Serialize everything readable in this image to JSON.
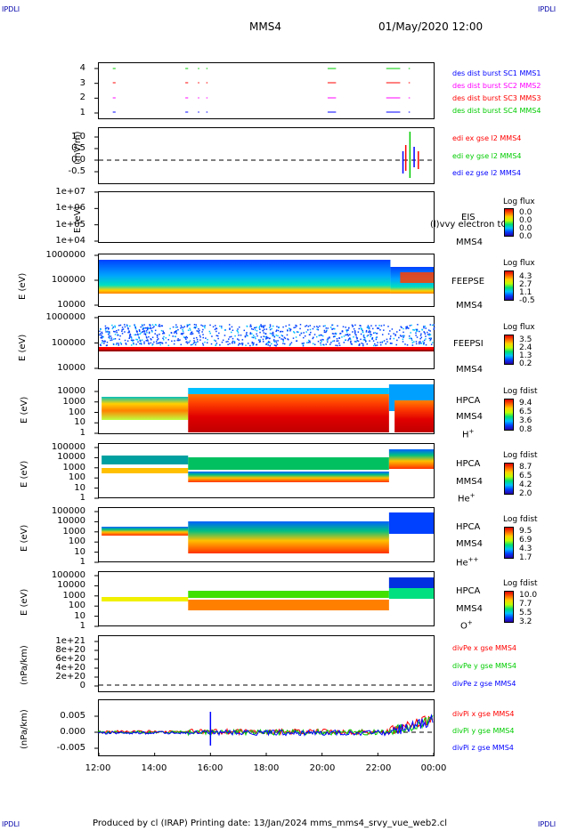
{
  "header": {
    "corner_tl": "IPDLI",
    "corner_tr": "IPDLI",
    "corner_bl": "IPDLI",
    "corner_br": "IPDLI",
    "spacecraft": "MMS4",
    "datetime": "01/May/2020 12:00"
  },
  "footer": {
    "text": "Produced by cl (IRAP)   Printing date: 13/Jan/2024   mms_mms4_srvy_vue_web2.cl"
  },
  "colors": {
    "blue": "#0000ff",
    "magenta": "#ff00ff",
    "red": "#ff0000",
    "green": "#00cc00"
  },
  "chart_data": [
    {
      "type": "scatter",
      "name": "burst availability",
      "yticks": [
        "4",
        "3",
        "2",
        "1"
      ],
      "legend": [
        "des dist burst SC1 MMS1",
        "des dist burst SC2 MMS2",
        "des dist burst SC3 MMS3",
        "des dist burst SC4 MMS4"
      ],
      "xlim": [
        "12:00",
        "00:00"
      ]
    },
    {
      "type": "line",
      "ylabel": "(mV/m)",
      "yticks": [
        "1.0",
        "0.5",
        "0.0",
        "-0.5"
      ],
      "ylim": [
        -0.75,
        1.25
      ],
      "legend": [
        "edi ex gse l2 MMS4",
        "edi ey gse l2 MMS4",
        "edi ez gse l2 MMS4"
      ]
    },
    {
      "type": "heatmap",
      "ylabel": "E (eV)",
      "yticks": [
        "1e+07",
        "1e+06",
        "1e+05",
        "1e+04"
      ],
      "instrument": "EIS",
      "instrument2": "MMS4",
      "overlay": "(l)vvy electron tO",
      "cbar_title": "Log flux",
      "cbar_values": [
        "0.0",
        "0.0",
        "0.0",
        "0.0"
      ]
    },
    {
      "type": "heatmap",
      "ylabel": "E (eV)",
      "yticks": [
        "1000000",
        "100000",
        "10000"
      ],
      "instrument": "FEEPSE",
      "instrument2": "MMS4",
      "cbar_title": "Log flux",
      "cbar_values": [
        "4.3",
        "2.7",
        "1.1",
        "-0.5"
      ]
    },
    {
      "type": "heatmap",
      "ylabel": "E (eV)",
      "yticks": [
        "1000000",
        "100000",
        "10000"
      ],
      "instrument": "FEEPSI",
      "instrument2": "MMS4",
      "cbar_title": "Log flux",
      "cbar_values": [
        "3.5",
        "2.4",
        "1.3",
        "0.2"
      ]
    },
    {
      "type": "heatmap",
      "ylabel": "E (eV)",
      "yticks": [
        "10000",
        "1000",
        "100",
        "10",
        "1"
      ],
      "instrument": "HPCA",
      "instrument2": "MMS4",
      "species": "H",
      "species_sup": "+",
      "cbar_title": "Log fdist",
      "cbar_values": [
        "9.4",
        "6.5",
        "3.6",
        "0.8"
      ]
    },
    {
      "type": "heatmap",
      "ylabel": "E (eV)",
      "yticks": [
        "100000",
        "10000",
        "1000",
        "100",
        "10",
        "1"
      ],
      "instrument": "HPCA",
      "instrument2": "MMS4",
      "species": "He",
      "species_sup": "+",
      "cbar_title": "Log fdist",
      "cbar_values": [
        "8.7",
        "6.5",
        "4.2",
        "2.0"
      ]
    },
    {
      "type": "heatmap",
      "ylabel": "E (eV)",
      "yticks": [
        "100000",
        "10000",
        "1000",
        "100",
        "10",
        "1"
      ],
      "instrument": "HPCA",
      "instrument2": "MMS4",
      "species": "He",
      "species_sup": "++",
      "cbar_title": "Log fdist",
      "cbar_values": [
        "9.5",
        "6.9",
        "4.3",
        "1.7"
      ]
    },
    {
      "type": "heatmap",
      "ylabel": "E (eV)",
      "yticks": [
        "100000",
        "10000",
        "1000",
        "100",
        "10",
        "1"
      ],
      "instrument": "HPCA",
      "instrument2": "MMS4",
      "species": "O",
      "species_sup": "+",
      "cbar_title": "Log fdist",
      "cbar_values": [
        "10.0",
        "7.7",
        "5.5",
        "3.2"
      ]
    },
    {
      "type": "line",
      "ylabel": "(nPa/km)",
      "yticks": [
        "1e+21",
        "8e+20",
        "6e+20",
        "4e+20",
        "2e+20",
        "0"
      ],
      "legend": [
        "divPe x gse MMS4",
        "divPe y gse MMS4",
        "divPe z gse MMS4"
      ]
    },
    {
      "type": "line",
      "ylabel": "(nPa/km)",
      "yticks": [
        "0.005",
        "0.000",
        "-0.005"
      ],
      "ylim": [
        -0.0075,
        0.0085
      ],
      "legend": [
        "divPi x gse MMS4",
        "divPi y gse MMS4",
        "divPi z gse MMS4"
      ]
    }
  ],
  "xaxis": {
    "ticks": [
      "12:00",
      "14:00",
      "16:00",
      "18:00",
      "20:00",
      "22:00",
      "00:00"
    ]
  }
}
